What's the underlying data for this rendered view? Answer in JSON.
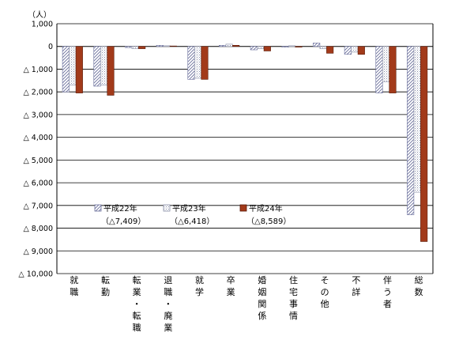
{
  "chart_data": {
    "type": "bar",
    "unit_label": "（人）",
    "ylim": [
      -10000,
      1000
    ],
    "yticks": [
      {
        "value": 1000,
        "label": "1,000"
      },
      {
        "value": 0,
        "label": "0"
      },
      {
        "value": -1000,
        "label": "△ 1,000"
      },
      {
        "value": -2000,
        "label": "△ 2,000"
      },
      {
        "value": -3000,
        "label": "△ 3,000"
      },
      {
        "value": -4000,
        "label": "△ 4,000"
      },
      {
        "value": -5000,
        "label": "△ 5,000"
      },
      {
        "value": -6000,
        "label": "△ 6,000"
      },
      {
        "value": -7000,
        "label": "△ 7,000"
      },
      {
        "value": -8000,
        "label": "△ 8,000"
      },
      {
        "value": -9000,
        "label": "△ 9,000"
      },
      {
        "value": -10000,
        "label": "△ 10,000"
      }
    ],
    "categories": [
      "就職",
      "転勤",
      "転業・転職",
      "退職・廃業",
      "就学",
      "卒業",
      "婚姻関係",
      "住宅事情",
      "その他",
      "不詳",
      "伴う者",
      "総数"
    ],
    "grid": true,
    "legend_position": "center-left",
    "series": [
      {
        "name": "平成22年",
        "total_label": "（△7,409）",
        "pattern": "hatch",
        "color": "#6a6f9c",
        "values": [
          -2000,
          -1750,
          -50,
          50,
          -1450,
          50,
          -150,
          -30,
          150,
          -350,
          -2050,
          -7409
        ]
      },
      {
        "name": "平成23年",
        "total_label": "（△6,418）",
        "pattern": "dots",
        "color": "#8a8fa8",
        "values": [
          -1700,
          -1700,
          -100,
          30,
          -1400,
          100,
          -100,
          30,
          -100,
          -250,
          -1550,
          -6418
        ]
      },
      {
        "name": "平成24年",
        "total_label": "（△8,589）",
        "pattern": "solid",
        "color": "#a23a1a",
        "values": [
          -2050,
          -2150,
          -100,
          20,
          -1450,
          50,
          -200,
          -30,
          -300,
          -350,
          -2050,
          -8589
        ]
      }
    ]
  }
}
